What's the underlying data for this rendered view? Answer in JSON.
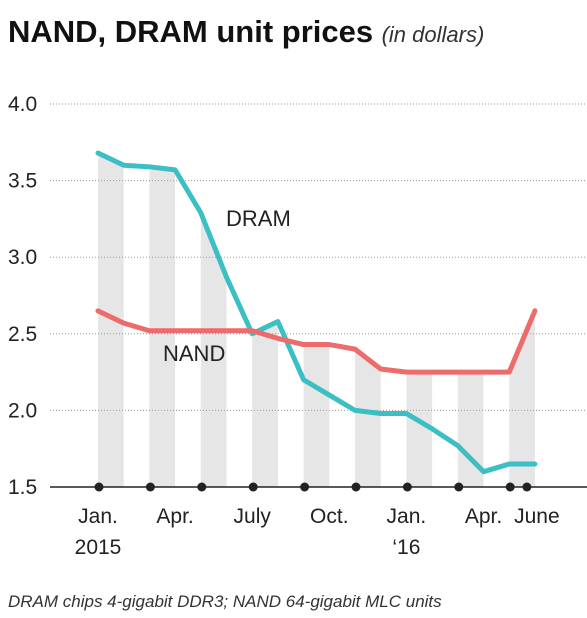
{
  "title": "NAND, DRAM unit prices",
  "title_unit": "(in dollars)",
  "footnote": "DRAM chips 4-gigabit DDR3; NAND 64-gigabit MLC units",
  "colors": {
    "dram": "#3bbfc4",
    "nand": "#ee6b6b",
    "band": "#e6e6e6",
    "grid": "#9a9a9a",
    "axis": "#222222"
  },
  "chart_data": {
    "type": "line",
    "ylim": [
      1.5,
      4.0
    ],
    "yticks": [
      "4.0",
      "3.5",
      "3.0",
      "2.5",
      "2.0",
      "1.5"
    ],
    "ytick_values": [
      4.0,
      3.5,
      3.0,
      2.5,
      2.0,
      1.5
    ],
    "months": 18,
    "xtick_labels": [
      {
        "index": 0,
        "line1": "Jan.",
        "line2": "2015"
      },
      {
        "index": 3,
        "line1": "Apr.",
        "line2": ""
      },
      {
        "index": 6,
        "line1": "July",
        "line2": ""
      },
      {
        "index": 9,
        "line1": "Oct.",
        "line2": ""
      },
      {
        "index": 12,
        "line1": "Jan.",
        "line2": "‘16"
      },
      {
        "index": 15,
        "line1": "Apr.",
        "line2": ""
      },
      {
        "index": 17,
        "line1": "June",
        "line2": ""
      }
    ],
    "series": [
      {
        "name": "DRAM",
        "values": [
          3.68,
          3.6,
          3.59,
          3.57,
          3.29,
          2.87,
          2.5,
          2.58,
          2.2,
          2.1,
          2.0,
          1.98,
          1.98,
          1.88,
          1.77,
          1.6,
          1.65,
          1.65
        ]
      },
      {
        "name": "NAND",
        "values": [
          2.65,
          2.57,
          2.52,
          2.52,
          2.52,
          2.52,
          2.52,
          2.47,
          2.43,
          2.43,
          2.4,
          2.27,
          2.25,
          2.25,
          2.25,
          2.25,
          2.25,
          2.65
        ]
      }
    ],
    "series_labels": {
      "dram": "DRAM",
      "nand": "NAND"
    }
  }
}
